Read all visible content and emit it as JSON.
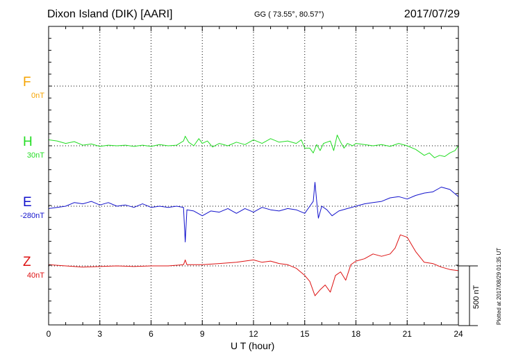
{
  "header": {
    "station": "Dixon Island (DIK)  [AARI]",
    "coords": "GG ( 73.55°,  80.57°)",
    "date": "2017/07/29"
  },
  "footer": {
    "plotted": "Plotted at 2017/08/29 01:35 UT",
    "scale_label": "500 nT"
  },
  "colors": {
    "F": "#f5a300",
    "H": "#22dd22",
    "E": "#1111cc",
    "Z": "#dd1111"
  },
  "chart_data": {
    "type": "line",
    "title": "Dixon Island (DIK)  [AARI]",
    "xlabel": "U T (hour)",
    "xlim": [
      0,
      24
    ],
    "xticks": [
      "0",
      "3",
      "6",
      "9",
      "12",
      "15",
      "18",
      "21",
      "24"
    ],
    "grid": true,
    "scale_bar_nT": 500,
    "series": [
      {
        "name": "F",
        "baseline": "0nT",
        "values_nT": []
      },
      {
        "name": "H",
        "baseline": "30nT",
        "x": [
          0,
          0.5,
          1,
          1.5,
          2,
          2.5,
          3,
          3.5,
          4,
          4.5,
          5,
          5.5,
          6,
          6.5,
          7,
          7.5,
          7.9,
          8,
          8.2,
          8.5,
          8.8,
          9,
          9.3,
          9.6,
          10,
          10.5,
          11,
          11.5,
          12,
          12.5,
          13,
          13.5,
          14,
          14.5,
          14.8,
          15,
          15.3,
          15.5,
          15.7,
          15.9,
          16.1,
          16.3,
          16.5,
          16.7,
          16.9,
          17.1,
          17.3,
          17.5,
          17.8,
          18,
          18.5,
          19,
          19.5,
          20,
          20.5,
          21,
          21.5,
          21.8,
          22,
          22.3,
          22.6,
          22.9,
          23.2,
          23.5,
          23.8,
          24
        ],
        "values_nT": [
          50,
          40,
          20,
          35,
          5,
          15,
          -5,
          5,
          0,
          5,
          -5,
          5,
          -5,
          10,
          0,
          5,
          40,
          80,
          30,
          0,
          60,
          20,
          40,
          -10,
          20,
          0,
          30,
          10,
          50,
          20,
          60,
          30,
          40,
          20,
          50,
          -20,
          -20,
          -60,
          10,
          -40,
          20,
          30,
          40,
          -40,
          90,
          30,
          -20,
          20,
          0,
          20,
          10,
          0,
          10,
          -5,
          20,
          0,
          -30,
          -60,
          -80,
          -60,
          -100,
          -80,
          -90,
          -60,
          -40,
          0
        ]
      },
      {
        "name": "E",
        "baseline": "-280nT",
        "x": [
          0,
          0.5,
          1,
          1.5,
          2,
          2.5,
          3,
          3.5,
          4,
          4.5,
          5,
          5.5,
          6,
          6.5,
          7,
          7.5,
          7.9,
          8.0,
          8.1,
          8.5,
          9,
          9.5,
          10,
          10.5,
          11,
          11.5,
          12,
          12.5,
          13,
          13.5,
          14,
          14.5,
          15,
          15.3,
          15.5,
          15.6,
          15.7,
          15.8,
          16,
          16.3,
          16.6,
          17,
          17.5,
          18,
          18.5,
          19,
          19.5,
          20,
          20.5,
          21,
          21.5,
          22,
          22.5,
          23,
          23.5,
          24
        ],
        "values_nT": [
          -20,
          -10,
          0,
          30,
          20,
          40,
          10,
          30,
          0,
          10,
          -10,
          20,
          -10,
          0,
          -10,
          0,
          -10,
          -300,
          -30,
          -40,
          -80,
          -40,
          -50,
          -20,
          -60,
          -20,
          -50,
          -10,
          -30,
          -40,
          -20,
          -30,
          -60,
          0,
          40,
          200,
          40,
          -100,
          0,
          -30,
          -80,
          -40,
          -20,
          0,
          20,
          30,
          40,
          70,
          80,
          60,
          90,
          110,
          120,
          160,
          140,
          80
        ]
      },
      {
        "name": "Z",
        "baseline": "40nT",
        "x": [
          0,
          1,
          2,
          3,
          4,
          5,
          6,
          7,
          7.9,
          8,
          8.1,
          9,
          10,
          11,
          12,
          12.5,
          13,
          13.5,
          14,
          14.5,
          15,
          15.3,
          15.6,
          15.9,
          16.2,
          16.5,
          16.8,
          17.1,
          17.4,
          17.7,
          18,
          18.5,
          19,
          19.5,
          20,
          20.3,
          20.6,
          21,
          21.5,
          22,
          22.5,
          23,
          23.5,
          24
        ],
        "values_nT": [
          10,
          0,
          -10,
          -5,
          0,
          -5,
          0,
          0,
          10,
          50,
          10,
          10,
          20,
          30,
          50,
          30,
          40,
          20,
          10,
          -20,
          -80,
          -130,
          -250,
          -200,
          -160,
          -220,
          -80,
          -50,
          -120,
          10,
          40,
          60,
          100,
          80,
          100,
          150,
          260,
          240,
          120,
          30,
          20,
          -10,
          -30,
          -40
        ]
      }
    ]
  }
}
